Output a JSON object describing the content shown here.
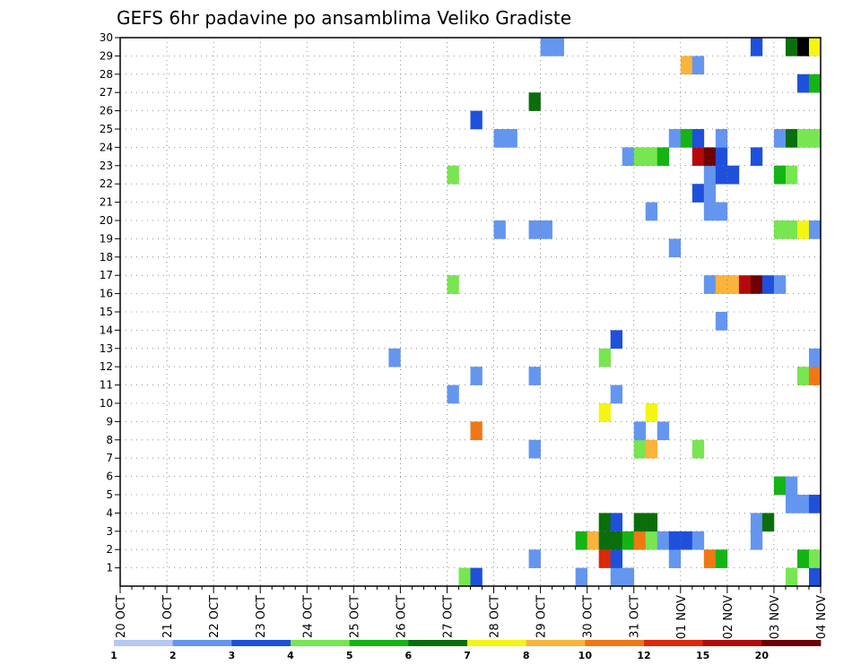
{
  "chart_data": {
    "type": "heatmap",
    "title": "GEFS 6hr padavine po ansamblima Veliko Gradiste",
    "xlabel": "",
    "ylabel": "",
    "y_ticks": [
      "1",
      "2",
      "3",
      "4",
      "5",
      "6",
      "7",
      "8",
      "9",
      "10",
      "11",
      "12",
      "13",
      "14",
      "15",
      "16",
      "17",
      "18",
      "19",
      "20",
      "21",
      "22",
      "23",
      "24",
      "25",
      "26",
      "27",
      "28",
      "29",
      "30"
    ],
    "x_ticks": [
      "20 OCT",
      "21 OCT",
      "22 OCT",
      "23 OCT",
      "24 OCT",
      "25 OCT",
      "26 OCT",
      "27 OCT",
      "28 OCT",
      "29 OCT",
      "30 OCT",
      "31 OCT",
      "01 NOV",
      "02 NOV",
      "03 NOV",
      "04 NOV"
    ],
    "x_range_days": [
      0,
      15
    ],
    "y_range": [
      0,
      30
    ],
    "steps_per_day": 4,
    "grid": true,
    "legend_position": "bottom",
    "colorbar": {
      "colors": [
        "#b4c8f5",
        "#6496f0",
        "#1e50dc",
        "#78e650",
        "#14b414",
        "#0a6e0a",
        "#f5f514",
        "#fab43c",
        "#f07814",
        "#dc280a",
        "#b40a0a",
        "#6e0000"
      ],
      "labels": [
        "1",
        "2",
        "3",
        "4",
        "5",
        "6",
        "7",
        "8",
        "10",
        "12",
        "15",
        "20"
      ]
    },
    "cells": [
      [
        7.25,
        0,
        3
      ],
      [
        7.5,
        0,
        2
      ],
      [
        9.75,
        0,
        1
      ],
      [
        10.5,
        0,
        1
      ],
      [
        10.75,
        0,
        1
      ],
      [
        14.25,
        0,
        3
      ],
      [
        14.75,
        0,
        2
      ],
      [
        8.75,
        1,
        1
      ],
      [
        10.25,
        1,
        9
      ],
      [
        10.5,
        1,
        2
      ],
      [
        11.75,
        1,
        1
      ],
      [
        12.5,
        1,
        8
      ],
      [
        12.75,
        1,
        4
      ],
      [
        14.5,
        1,
        4
      ],
      [
        14.75,
        1,
        3
      ],
      [
        9.75,
        2,
        4
      ],
      [
        10,
        2,
        7
      ],
      [
        10.25,
        2,
        5
      ],
      [
        10.5,
        2,
        5
      ],
      [
        10.75,
        2,
        4
      ],
      [
        11,
        2,
        8
      ],
      [
        11.25,
        2,
        3
      ],
      [
        11.5,
        2,
        1
      ],
      [
        11.75,
        2,
        2
      ],
      [
        12,
        2,
        2
      ],
      [
        12.25,
        2,
        1
      ],
      [
        13.5,
        2,
        1
      ],
      [
        10.25,
        3,
        5
      ],
      [
        10.5,
        3,
        2
      ],
      [
        11,
        3,
        5
      ],
      [
        11.25,
        3,
        5
      ],
      [
        13.5,
        3,
        1
      ],
      [
        13.75,
        3,
        5
      ],
      [
        14.25,
        4,
        1
      ],
      [
        14.5,
        4,
        1
      ],
      [
        14.75,
        4,
        2
      ],
      [
        14,
        5,
        4
      ],
      [
        14.25,
        5,
        1
      ],
      [
        8.75,
        7,
        1
      ],
      [
        11,
        7,
        3
      ],
      [
        11.25,
        7,
        7
      ],
      [
        12.25,
        7,
        3
      ],
      [
        7.5,
        8,
        8
      ],
      [
        11,
        8,
        1
      ],
      [
        11.5,
        8,
        1
      ],
      [
        15,
        8,
        2
      ],
      [
        10.25,
        9,
        6
      ],
      [
        11.25,
        9,
        6
      ],
      [
        7,
        10,
        1
      ],
      [
        10.5,
        10,
        1
      ],
      [
        7.5,
        11,
        1
      ],
      [
        8.75,
        11,
        1
      ],
      [
        14.5,
        11,
        3
      ],
      [
        14.75,
        11,
        8
      ],
      [
        15,
        11,
        8
      ],
      [
        15.25,
        11,
        5
      ],
      [
        5.75,
        12,
        1
      ],
      [
        10.25,
        12,
        3
      ],
      [
        14.75,
        12,
        1
      ],
      [
        15,
        12,
        1
      ],
      [
        10.5,
        13,
        2
      ],
      [
        12.75,
        14,
        1
      ],
      [
        7,
        16,
        3
      ],
      [
        12.5,
        16,
        1
      ],
      [
        12.75,
        16,
        7
      ],
      [
        13,
        16,
        7
      ],
      [
        13.25,
        16,
        10
      ],
      [
        13.5,
        16,
        11
      ],
      [
        13.75,
        16,
        2
      ],
      [
        14,
        16,
        1
      ],
      [
        15,
        16,
        1
      ],
      [
        11.75,
        18,
        1
      ],
      [
        8,
        19,
        1
      ],
      [
        8.75,
        19,
        1
      ],
      [
        9,
        19,
        1
      ],
      [
        14,
        19,
        3
      ],
      [
        14.25,
        19,
        3
      ],
      [
        14.5,
        19,
        6
      ],
      [
        14.75,
        19,
        1
      ],
      [
        11.25,
        20,
        1
      ],
      [
        12.5,
        20,
        1
      ],
      [
        12.75,
        20,
        1
      ],
      [
        12.25,
        21,
        2
      ],
      [
        12.5,
        21,
        1
      ],
      [
        7,
        22,
        3
      ],
      [
        12.5,
        22,
        1
      ],
      [
        12.75,
        22,
        2
      ],
      [
        13,
        22,
        2
      ],
      [
        14,
        22,
        4
      ],
      [
        14.25,
        22,
        3
      ],
      [
        10.75,
        23,
        1
      ],
      [
        11,
        23,
        3
      ],
      [
        11.25,
        23,
        3
      ],
      [
        11.5,
        23,
        4
      ],
      [
        12.25,
        23,
        10
      ],
      [
        12.5,
        23,
        11
      ],
      [
        12.75,
        23,
        2
      ],
      [
        13.5,
        23,
        2
      ],
      [
        8,
        24,
        1
      ],
      [
        8.25,
        24,
        1
      ],
      [
        11.75,
        24,
        1
      ],
      [
        12,
        24,
        4
      ],
      [
        12.25,
        24,
        2
      ],
      [
        12.75,
        24,
        1
      ],
      [
        14,
        24,
        1
      ],
      [
        14.25,
        24,
        5
      ],
      [
        14.5,
        24,
        3
      ],
      [
        14.75,
        24,
        3
      ],
      [
        15,
        24,
        2
      ],
      [
        7.5,
        25,
        2
      ],
      [
        8.75,
        26,
        5
      ],
      [
        14.5,
        27,
        2
      ],
      [
        14.75,
        27,
        4
      ],
      [
        12,
        28,
        7
      ],
      [
        12.25,
        28,
        1
      ],
      [
        15,
        28,
        2
      ],
      [
        9,
        29,
        1
      ],
      [
        9.25,
        29,
        1
      ],
      [
        13.5,
        29,
        2
      ],
      [
        14.25,
        29,
        5
      ],
      [
        14.5,
        29,
        12
      ],
      [
        14.75,
        29,
        6
      ]
    ]
  }
}
